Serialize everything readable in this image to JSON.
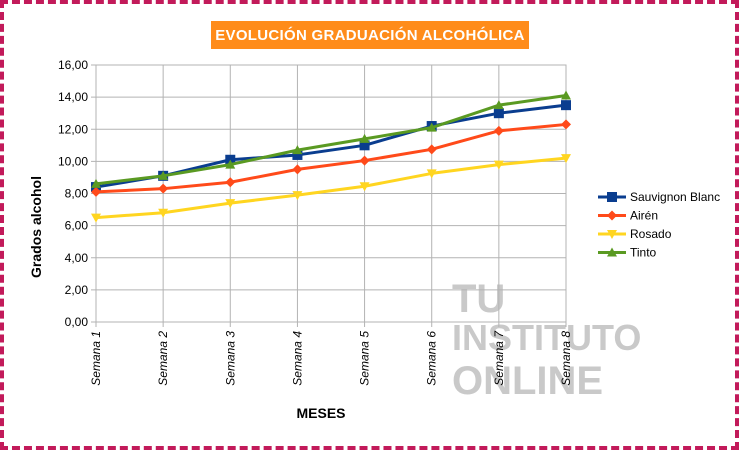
{
  "chart_data": {
    "type": "line",
    "title": "EVOLUCIÓN GRADUACIÓN ALCOHÓLICA",
    "xlabel": "MESES",
    "ylabel": "Grados alcohol",
    "categories": [
      "Semana 1",
      "Semana 2",
      "Semana 3",
      "Semana 4",
      "Semana 5",
      "Semana 6",
      "Semana 7",
      "Semana 8"
    ],
    "ylim": [
      0,
      16
    ],
    "yticks": [
      "0,00",
      "2,00",
      "4,00",
      "6,00",
      "8,00",
      "10,00",
      "12,00",
      "14,00",
      "16,00"
    ],
    "grid": true,
    "legend_position": "right",
    "series": [
      {
        "name": "Sauvignon Blanc",
        "color": "#0a3d8f",
        "marker": "square",
        "values": [
          8.4,
          9.1,
          10.1,
          10.4,
          11.0,
          12.2,
          13.0,
          13.5
        ]
      },
      {
        "name": "Airén",
        "color": "#ff4a1a",
        "marker": "diamond",
        "values": [
          8.1,
          8.3,
          8.7,
          9.5,
          10.05,
          10.75,
          11.9,
          12.3
        ]
      },
      {
        "name": "Rosado",
        "color": "#ffd520",
        "marker": "triangle-down",
        "values": [
          6.5,
          6.8,
          7.4,
          7.9,
          8.45,
          9.25,
          9.8,
          10.2
        ]
      },
      {
        "name": "Tinto",
        "color": "#5a9a22",
        "marker": "triangle-up",
        "values": [
          8.6,
          9.1,
          9.8,
          10.7,
          11.4,
          12.1,
          13.5,
          14.1
        ]
      }
    ]
  },
  "watermark": {
    "line1": "TU",
    "line2": "INSTITUTO",
    "line3": "ONLINE"
  }
}
